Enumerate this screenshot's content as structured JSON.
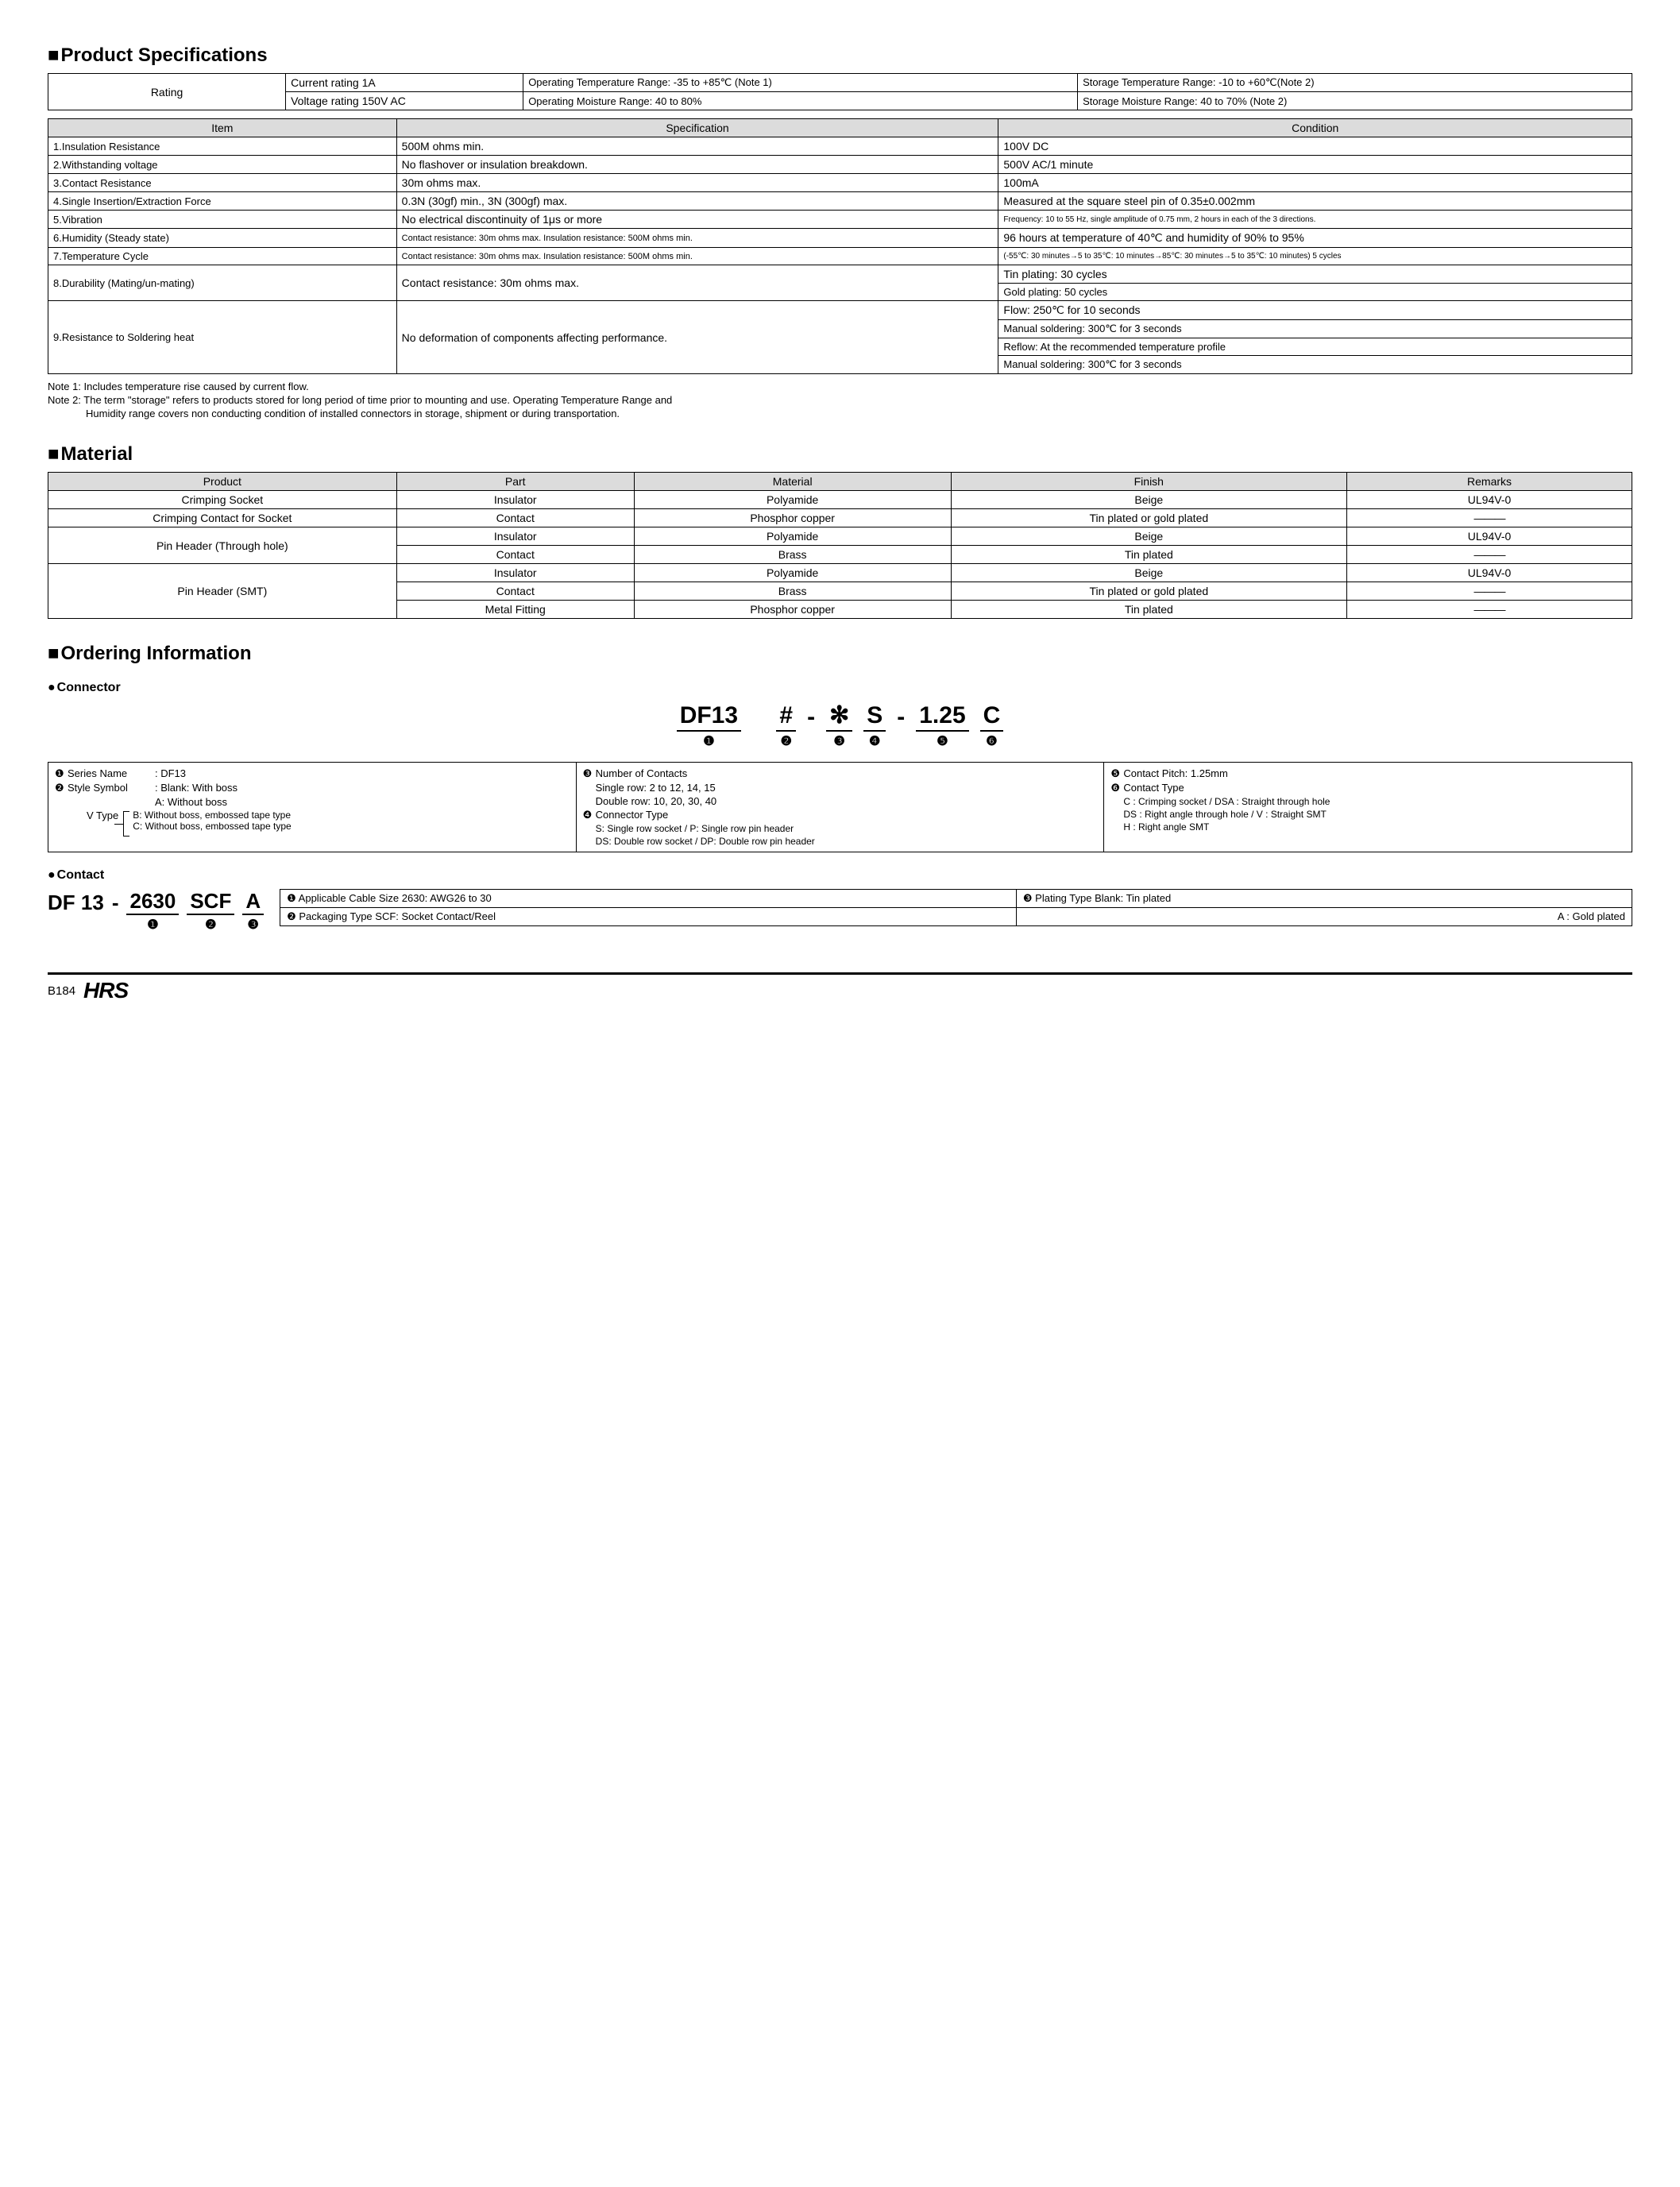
{
  "colors": {
    "header_bg": "#dcdcdc",
    "border": "#000000",
    "text": "#000000",
    "bg": "#ffffff"
  },
  "typography": {
    "base_font": "Arial",
    "base_size_pt": 10,
    "title_size_pt": 18,
    "title_weight": "bold"
  },
  "sec_spec_title": "Product Specifications",
  "rating": {
    "label": "Rating",
    "r1c1": "Current rating  1A",
    "r1c2": "Operating Temperature Range: -35 to +85℃ (Note 1)",
    "r1c3": "Storage Temperature Range: -10 to +60℃(Note 2)",
    "r2c1": "Voltage rating  150V AC",
    "r2c2": "Operating Moisture Range: 40 to 80%",
    "r2c3": "Storage Moisture Range: 40 to 70%        (Note 2)"
  },
  "spec_headers": {
    "h1": "Item",
    "h2": "Specification",
    "h3": "Condition"
  },
  "spec": [
    {
      "item": "1.Insulation Resistance",
      "spec": "500M ohms min.",
      "cond": "100V DC"
    },
    {
      "item": "2.Withstanding voltage",
      "spec": "No flashover or insulation breakdown.",
      "cond": "500V AC/1 minute"
    },
    {
      "item": "3.Contact Resistance",
      "spec": "30m ohms max.",
      "cond": "100mA"
    },
    {
      "item": "4.Single Insertion/Extraction Force",
      "spec": "0.3N (30gf) min., 3N (300gf) max.",
      "cond": "Measured at the square steel pin of 0.35±0.002mm",
      "item_sm": true
    },
    {
      "item": "5.Vibration",
      "spec": "No electrical discontinuity of 1μs or more",
      "cond": "Frequency: 10 to 55 Hz, single amplitude of 0.75 mm, 2 hours in each of the 3 directions.",
      "cond_xs": true
    },
    {
      "item": "6.Humidity (Steady state)",
      "spec": "Contact resistance: 30m ohms max. Insulation resistance: 500M ohms min.",
      "cond": "96 hours at temperature of 40℃ and humidity of 90% to 95%",
      "spec_sm": true
    },
    {
      "item": "7.Temperature Cycle",
      "spec": "Contact resistance: 30m ohms max. Insulation resistance: 500M ohms min.",
      "cond": "(-55℃: 30 minutes→5 to 35℃: 10 minutes→85℃: 30 minutes→5 to 35℃: 10 minutes) 5 cycles",
      "spec_sm": true,
      "cond_xs": true
    }
  ],
  "spec_8": {
    "item": "8.Durability (Mating/un-mating)",
    "spec": "Contact resistance: 30m ohms max.",
    "cond1": "Tin plating: 30 cycles",
    "cond2": "Gold plating: 50 cycles",
    "item_sm": true
  },
  "spec_9": {
    "item": "9.Resistance to Soldering heat",
    "spec": "No deformation of components affecting performance.",
    "cond1": "Flow: 250℃ for 10 seconds",
    "cond2": "Manual soldering: 300℃ for 3 seconds",
    "cond3": "Reflow: At the recommended temperature profile",
    "cond4": "Manual soldering: 300℃ for 3 seconds",
    "item_sm": true
  },
  "note1": "Note 1: Includes temperature rise caused by current flow.",
  "note2a": "Note 2: The term \"storage\" refers to products stored for long period of time prior to mounting and use. Operating Temperature Range and",
  "note2b": "Humidity range covers non conducting condition of installed connectors in storage, shipment or during transportation.",
  "sec_material_title": "Material",
  "mat_headers": {
    "h1": "Product",
    "h2": "Part",
    "h3": "Material",
    "h4": "Finish",
    "h5": "Remarks"
  },
  "mat_dash": "———",
  "mat": {
    "r1": {
      "prod": "Crimping Socket",
      "part": "Insulator",
      "mat": "Polyamide",
      "fin": "Beige",
      "rem": "UL94V-0"
    },
    "r2": {
      "prod": "Crimping Contact for Socket",
      "part": "Contact",
      "mat": "Phosphor copper",
      "fin": "Tin plated or gold plated"
    },
    "r3": {
      "prod": "Pin Header (Through hole)",
      "part": "Insulator",
      "mat": "Polyamide",
      "fin": "Beige",
      "rem": "UL94V-0"
    },
    "r4": {
      "part": "Contact",
      "mat": "Brass",
      "fin": "Tin plated"
    },
    "r5": {
      "prod": "Pin Header (SMT)",
      "part": "Insulator",
      "mat": "Polyamide",
      "fin": "Beige",
      "rem": "UL94V-0"
    },
    "r6": {
      "part": "Contact",
      "mat": "Brass",
      "fin": "Tin plated or gold plated"
    },
    "r7": {
      "part": "Metal Fitting",
      "mat": "Phosphor copper",
      "fin": "Tin plated"
    }
  },
  "sec_order_title": "Ordering Information",
  "sub_connector": "Connector",
  "conn_formula": {
    "p1": "DF13",
    "p2": "#",
    "sep": "-",
    "p3": "✻",
    "p4": "S",
    "p5": "1.25",
    "p6": "C",
    "n1": "❶",
    "n2": "❷",
    "n3": "❸",
    "n4": "❹",
    "n5": "❺",
    "n6": "❻"
  },
  "conn_leg": {
    "c1": {
      "r1": {
        "c": "❶",
        "l": "Series Name",
        "v": ": DF13"
      },
      "r2": {
        "c": "❷",
        "l": "Style Symbol",
        "v": ": Blank: With boss"
      },
      "r3": {
        "v": "A: Without boss"
      },
      "vtype_label": "V Type",
      "vb": "B: Without boss, embossed tape type",
      "vc": "C: Without boss, embossed tape type"
    },
    "c2": {
      "r1": {
        "c": "❸",
        "v": "Number of Contacts"
      },
      "r2": {
        "v": "Single row: 2 to 12, 14, 15"
      },
      "r3": {
        "v": "Double row: 10, 20, 30, 40"
      },
      "r4": {
        "c": "❹",
        "v": "Connector Type"
      },
      "r5": {
        "v": "S: Single row socket / P: Single row pin header"
      },
      "r6": {
        "v": "DS: Double row socket / DP: Double row pin header"
      }
    },
    "c3": {
      "r1": {
        "c": "❺",
        "v": "Contact Pitch: 1.25mm"
      },
      "r2": {
        "c": "❻",
        "v": "Contact Type"
      },
      "r3": {
        "v": "C : Crimping socket / DSA : Straight through hole"
      },
      "r4": {
        "v": "DS : Right angle through hole / V : Straight SMT"
      },
      "r5": {
        "v": "H : Right angle SMT"
      }
    }
  },
  "sub_contact": "Contact",
  "cont_formula": {
    "p1": "DF 13",
    "sep": "-",
    "p2": "2630",
    "p3": "SCF",
    "p4": "A",
    "n1": "❶",
    "n2": "❷",
    "n3": "❸"
  },
  "cont_leg": {
    "r1c1": {
      "c": "❶",
      "v": "Applicable Cable Size  2630: AWG26 to 30"
    },
    "r1c2": {
      "c": "❸",
      "v": "Plating Type    Blank: Tin plated"
    },
    "r2c1": {
      "c": "❷",
      "v": "Packaging Type  SCF: Socket Contact/Reel"
    },
    "r2c2": {
      "v": "A    : Gold plated"
    }
  },
  "footer": {
    "page": "B184",
    "logo": "HRS"
  }
}
